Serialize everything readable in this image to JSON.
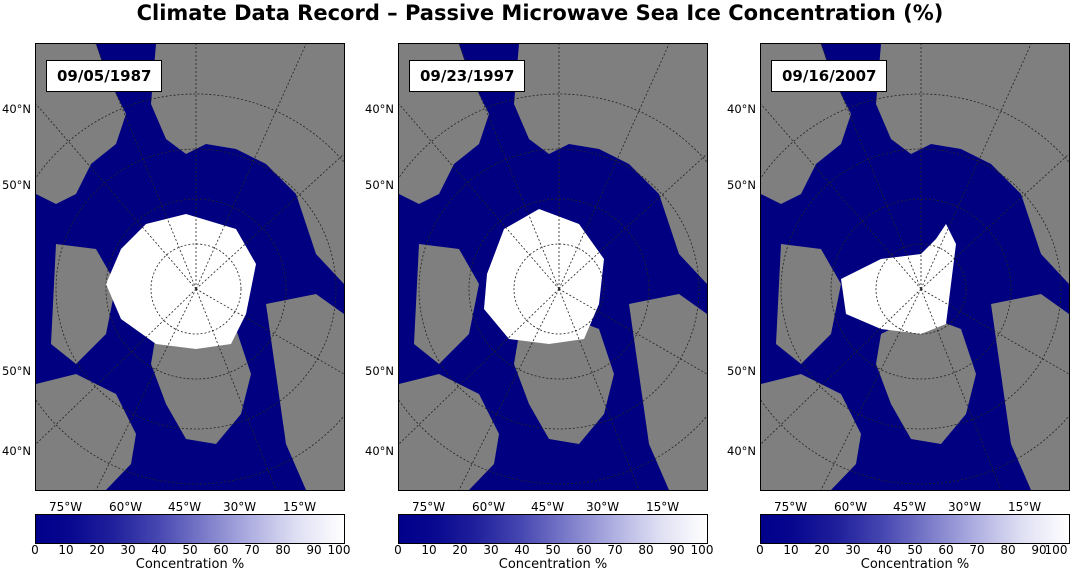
{
  "title": "Climate Data Record – Passive Microwave Sea Ice Concentration (%)",
  "colors": {
    "ocean": "#000080",
    "land": "#7f7f7f",
    "ice": "#ffffff"
  },
  "panels": [
    {
      "date": "09/05/1987",
      "ice_extent": "large"
    },
    {
      "date": "09/23/1997",
      "ice_extent": "medium"
    },
    {
      "date": "09/16/2007",
      "ice_extent": "small"
    }
  ],
  "lat_labels": [
    "40°N",
    "50°N",
    "50°N",
    "40°N"
  ],
  "lon_labels": [
    "75°W",
    "60°W",
    "45°W",
    "30°W",
    "15°W"
  ],
  "colorbar": {
    "ticks": [
      "0",
      "10",
      "20",
      "30",
      "40",
      "50",
      "60",
      "70",
      "80",
      "90",
      "100"
    ],
    "label": "Concentration %",
    "range": [
      0,
      100
    ]
  }
}
